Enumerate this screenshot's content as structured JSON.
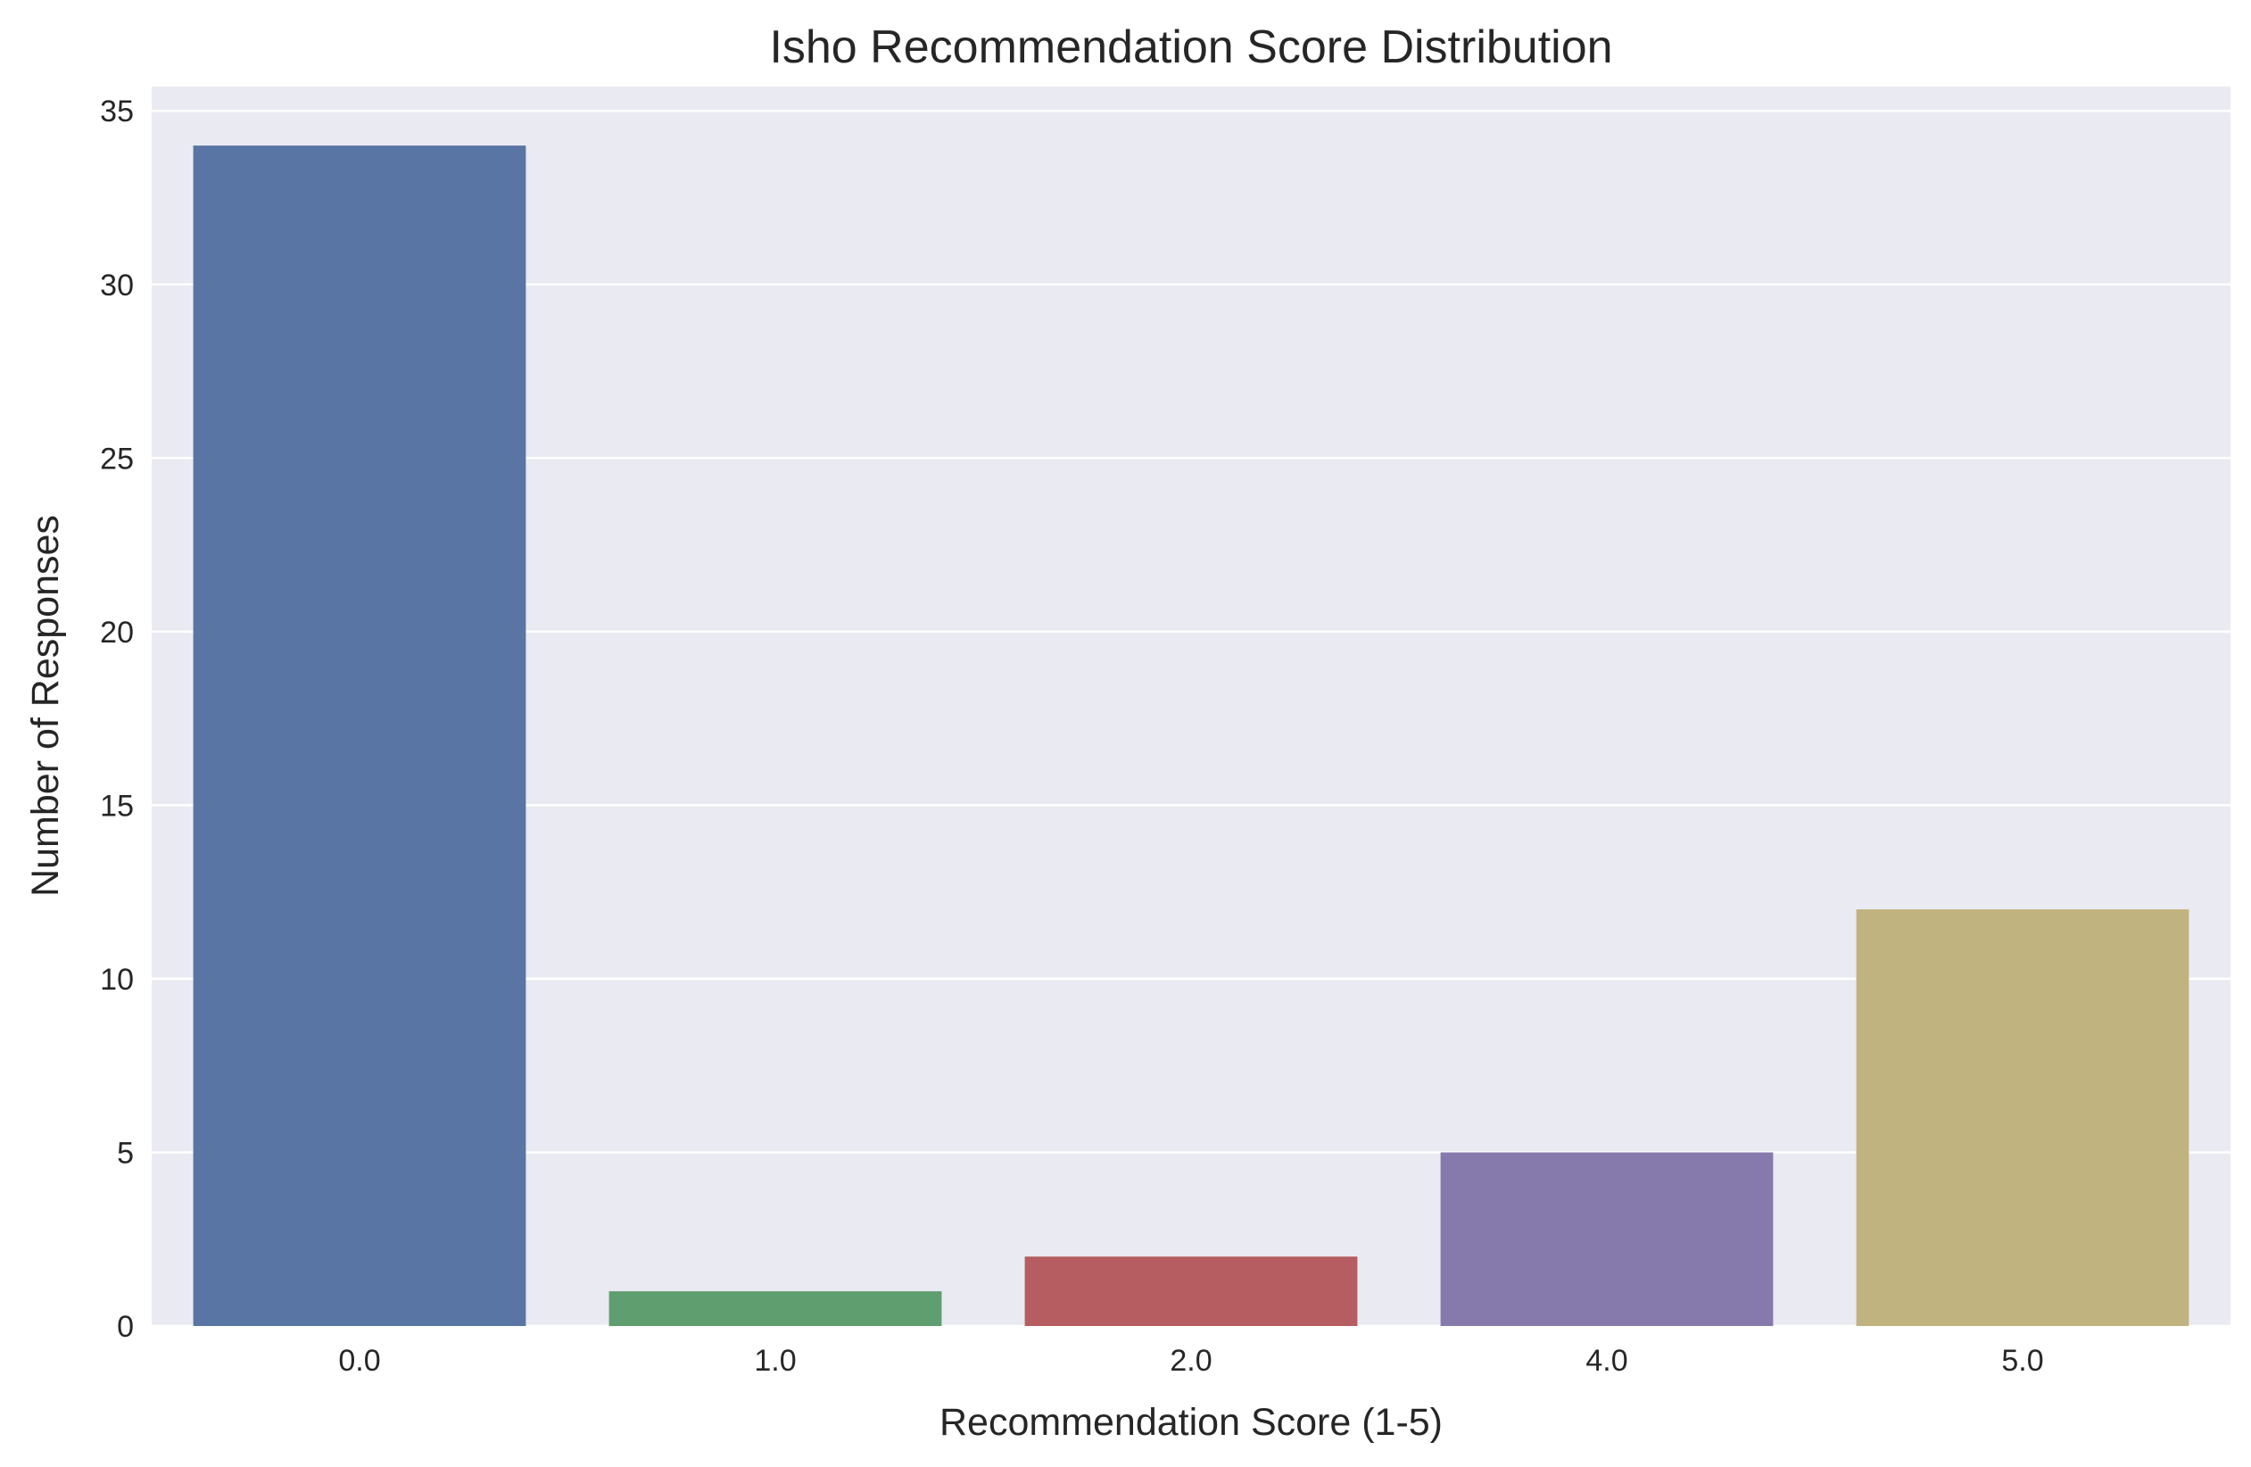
{
  "chart_data": {
    "type": "bar",
    "title": "Isho Recommendation Score Distribution",
    "xlabel": "Recommendation Score (1-5)",
    "ylabel": "Number of Responses",
    "categories": [
      "0.0",
      "1.0",
      "2.0",
      "4.0",
      "5.0"
    ],
    "values": [
      34,
      1,
      2,
      5,
      12
    ],
    "colors": [
      "#5875a4",
      "#5f9e6e",
      "#b55d60",
      "#857aab",
      "#c1b37f"
    ],
    "ylim": [
      0,
      35.7
    ],
    "yticks": [
      0,
      5,
      10,
      15,
      20,
      25,
      30,
      35
    ],
    "grid": true,
    "legend": "none",
    "background_color": "#eaeaf2",
    "grid_color": "#ffffff"
  }
}
